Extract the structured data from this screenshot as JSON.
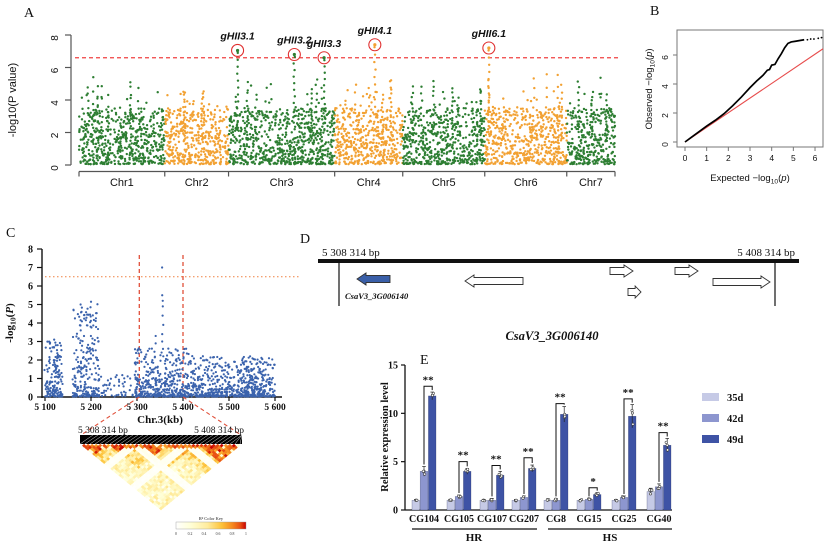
{
  "panel_labels": {
    "a": "A",
    "b": "B",
    "c": "C",
    "d": "D",
    "e": "E"
  },
  "colors": {
    "manhattan_green": "#2d7e32",
    "manhattan_orange": "#f2a132",
    "threshold_red": "#f04040",
    "qq_identity_red": "#e74c4c",
    "regional_blue": "#3b63ad",
    "regional_threshold_orange": "#f08040",
    "vline_red": "#e0503a",
    "gene_blue": "#3a5fa8",
    "bar_35d": "#c6cae6",
    "bar_42d": "#8d96cf",
    "bar_49d": "#3e53a5"
  },
  "chart_data": [
    {
      "id": "A",
      "type": "scatter",
      "subtype": "manhattan",
      "ylabel": "-log10(P value)",
      "yticks": [
        0,
        2,
        4,
        6,
        8
      ],
      "ylim": [
        0,
        8.3
      ],
      "threshold": 6.6,
      "chromosomes": [
        {
          "name": "Chr1",
          "color": "#2d7e32",
          "frac": 0.16
        },
        {
          "name": "Chr2",
          "color": "#f2a132",
          "frac": 0.119
        },
        {
          "name": "Chr3",
          "color": "#2d7e32",
          "frac": 0.198
        },
        {
          "name": "Chr4",
          "color": "#f2a132",
          "frac": 0.127
        },
        {
          "name": "Chr5",
          "color": "#2d7e32",
          "frac": 0.153
        },
        {
          "name": "Chr6",
          "color": "#f2a132",
          "frac": 0.153
        },
        {
          "name": "Chr7",
          "color": "#2d7e32",
          "frac": 0.09
        }
      ],
      "peaks": [
        {
          "label": "gHII3.1",
          "chr": 2,
          "rel": 0.085,
          "value": 7.05
        },
        {
          "label": "gHII3.2",
          "chr": 2,
          "rel": 0.62,
          "value": 6.8
        },
        {
          "label": "gHII3.3",
          "chr": 2,
          "rel": 0.9,
          "value": 6.6
        },
        {
          "label": "gHII4.1",
          "chr": 3,
          "rel": 0.59,
          "value": 7.4
        },
        {
          "label": "gHII6.1",
          "chr": 5,
          "rel": 0.05,
          "value": 7.2
        }
      ]
    },
    {
      "id": "B",
      "type": "line",
      "subtype": "qq",
      "xlabel_parts": {
        "pre": "Expected  −log",
        "sub": "10",
        "ital": "p"
      },
      "ylabel_parts": {
        "pre": "Observed  −log",
        "sub": "10",
        "ital": "p"
      },
      "xticks": [
        0,
        1,
        2,
        3,
        4,
        5,
        6
      ],
      "yticks": [
        0,
        2,
        4,
        6
      ],
      "xlim": [
        -0.37,
        6.37
      ],
      "ylim": [
        -0.35,
        7.7
      ],
      "observed": [
        [
          0,
          0
        ],
        [
          0.3,
          0.33
        ],
        [
          0.6,
          0.66
        ],
        [
          1,
          1.1
        ],
        [
          1.4,
          1.5
        ],
        [
          1.8,
          1.95
        ],
        [
          2.2,
          2.5
        ],
        [
          2.6,
          3.1
        ],
        [
          3,
          3.75
        ],
        [
          3.3,
          4.2
        ],
        [
          3.6,
          4.6
        ],
        [
          3.8,
          4.95
        ],
        [
          3.9,
          5.0
        ],
        [
          4.0,
          5.3
        ],
        [
          4.15,
          5.35
        ],
        [
          4.3,
          5.75
        ],
        [
          4.45,
          6.1
        ],
        [
          4.6,
          6.5
        ],
        [
          4.75,
          6.8
        ],
        [
          4.9,
          6.9
        ],
        [
          5.1,
          6.95
        ],
        [
          5.3,
          7.0
        ],
        [
          5.5,
          7.05
        ]
      ],
      "tail_dots": [
        [
          5.65,
          7.05
        ],
        [
          5.8,
          7.1
        ],
        [
          5.95,
          7.1
        ],
        [
          6.15,
          7.15
        ],
        [
          6.3,
          7.2
        ]
      ],
      "identity_line": [
        [
          0,
          0
        ],
        [
          6.37,
          6.43
        ]
      ]
    },
    {
      "id": "C",
      "type": "scatter",
      "subtype": "regional",
      "ylabel_parts": {
        "pre": "-log",
        "sub": "10",
        "ital": "P"
      },
      "xlabel": "Chr.3(kb)",
      "yticks": [
        0,
        1,
        2,
        3,
        4,
        5,
        6,
        7,
        8
      ],
      "xticks": [
        5100,
        5200,
        5300,
        5400,
        5500,
        5600
      ],
      "xtick_labels": [
        "5 100",
        "5 200",
        "5 300",
        "5 400",
        "5 500",
        "5 600"
      ],
      "threshold": 6.5,
      "vlines": [
        5305,
        5400
      ],
      "clusters": [
        {
          "x0": 5100,
          "x1": 5138,
          "n": 160,
          "max": 3.0
        },
        {
          "x0": 5160,
          "x1": 5218,
          "n": 230,
          "max": 5.0
        },
        {
          "x0": 5220,
          "x1": 5292,
          "n": 45,
          "max": 1.2
        },
        {
          "x0": 5295,
          "x1": 5420,
          "n": 430,
          "max": 2.6
        },
        {
          "x0": 5420,
          "x1": 5600,
          "n": 540,
          "max": 2.2
        },
        {
          "x0": 5530,
          "x1": 5578,
          "n": 90,
          "max": 2.1
        }
      ],
      "spikes": [
        {
          "x": 5356,
          "vals": [
            7.0,
            5.5,
            5.2,
            4.9,
            4.4,
            3.9,
            3.4,
            3.0,
            2.6,
            2.2
          ]
        },
        {
          "x": 5178,
          "vals": [
            5.0,
            4.6,
            4.15,
            3.6,
            3.05
          ]
        },
        {
          "x": 5200,
          "vals": [
            5.15,
            4.85,
            4.35,
            3.8,
            3.3
          ]
        },
        {
          "x": 5340,
          "vals": [
            3.3,
            2.9
          ]
        },
        {
          "x": 5120,
          "vals": [
            3.1,
            2.7
          ]
        },
        {
          "x": 5390,
          "vals": [
            2.5,
            2.1
          ]
        },
        {
          "x": 5545,
          "vals": [
            2.2,
            1.9
          ]
        }
      ],
      "heatmap": {
        "left_label": "5 308 314 bp",
        "right_label": "5 408 314 bp",
        "key_title": "R² Color Key",
        "key_ticks": [
          "0",
          "0.2",
          "0.4",
          "0.6",
          "0.8",
          "1"
        ]
      }
    },
    {
      "id": "D",
      "type": "diagram",
      "subtype": "gene-track",
      "start_label": "5 308 314 bp",
      "end_label": "5 408 314 bp",
      "gene_label": "CsaV3_3G006140",
      "genes": [
        {
          "x": 57,
          "w": 33,
          "y": 49,
          "dir": "left",
          "fill": "#3a5fa8",
          "labelled": true
        },
        {
          "x": 165,
          "w": 58,
          "y": 51,
          "dir": "left",
          "fill": "#ffffff"
        },
        {
          "x": 310,
          "w": 23,
          "y": 41,
          "dir": "right",
          "fill": "#ffffff"
        },
        {
          "x": 375,
          "w": 23,
          "y": 41,
          "dir": "right",
          "fill": "#ffffff"
        },
        {
          "x": 328,
          "w": 13,
          "y": 62,
          "dir": "right",
          "fill": "#ffffff"
        },
        {
          "x": 413,
          "w": 57,
          "y": 52,
          "dir": "right",
          "fill": "#ffffff"
        }
      ]
    },
    {
      "id": "E",
      "type": "bar",
      "title": "CsaV3_3G006140",
      "ylabel": "Relative expression level",
      "ylim": [
        0,
        15
      ],
      "yticks": [
        0,
        5,
        10,
        15
      ],
      "categories": [
        "CG104",
        "CG105",
        "CG107",
        "CG207",
        "CG8",
        "CG15",
        "CG25",
        "CG40"
      ],
      "groups": [
        {
          "label": "HR",
          "span": [
            0,
            3
          ]
        },
        {
          "label": "HS",
          "span": [
            4,
            7
          ]
        }
      ],
      "series": [
        {
          "name": "35d",
          "color": "#c6cae6",
          "values": [
            1.0,
            1.0,
            1.0,
            1.0,
            1.0,
            1.0,
            1.0,
            1.9
          ],
          "errors": [
            0.1,
            0.1,
            0.1,
            0.1,
            0.15,
            0.1,
            0.1,
            0.35
          ]
        },
        {
          "name": "42d",
          "color": "#8d96cf",
          "values": [
            4.0,
            1.4,
            1.0,
            1.3,
            1.0,
            1.1,
            1.3,
            2.4
          ],
          "errors": [
            0.5,
            0.15,
            0.2,
            0.15,
            0.2,
            0.1,
            0.15,
            0.3
          ]
        },
        {
          "name": "49d",
          "color": "#3e53a5",
          "values": [
            11.8,
            4.0,
            3.6,
            4.3,
            9.9,
            1.6,
            9.7,
            6.7
          ],
          "errors": [
            0.4,
            0.3,
            0.4,
            0.35,
            0.8,
            0.2,
            1.2,
            0.7
          ]
        }
      ],
      "sig": [
        {
          "cat": 0,
          "stars": "**",
          "h": 12.8
        },
        {
          "cat": 1,
          "stars": "**",
          "h": 5.0
        },
        {
          "cat": 2,
          "stars": "**",
          "h": 4.6
        },
        {
          "cat": 3,
          "stars": "**",
          "h": 5.4
        },
        {
          "cat": 4,
          "stars": "**",
          "h": 11.0
        },
        {
          "cat": 5,
          "stars": "*",
          "h": 2.3
        },
        {
          "cat": 6,
          "stars": "**",
          "h": 11.5
        },
        {
          "cat": 7,
          "stars": "**",
          "h": 8.0
        }
      ]
    }
  ]
}
